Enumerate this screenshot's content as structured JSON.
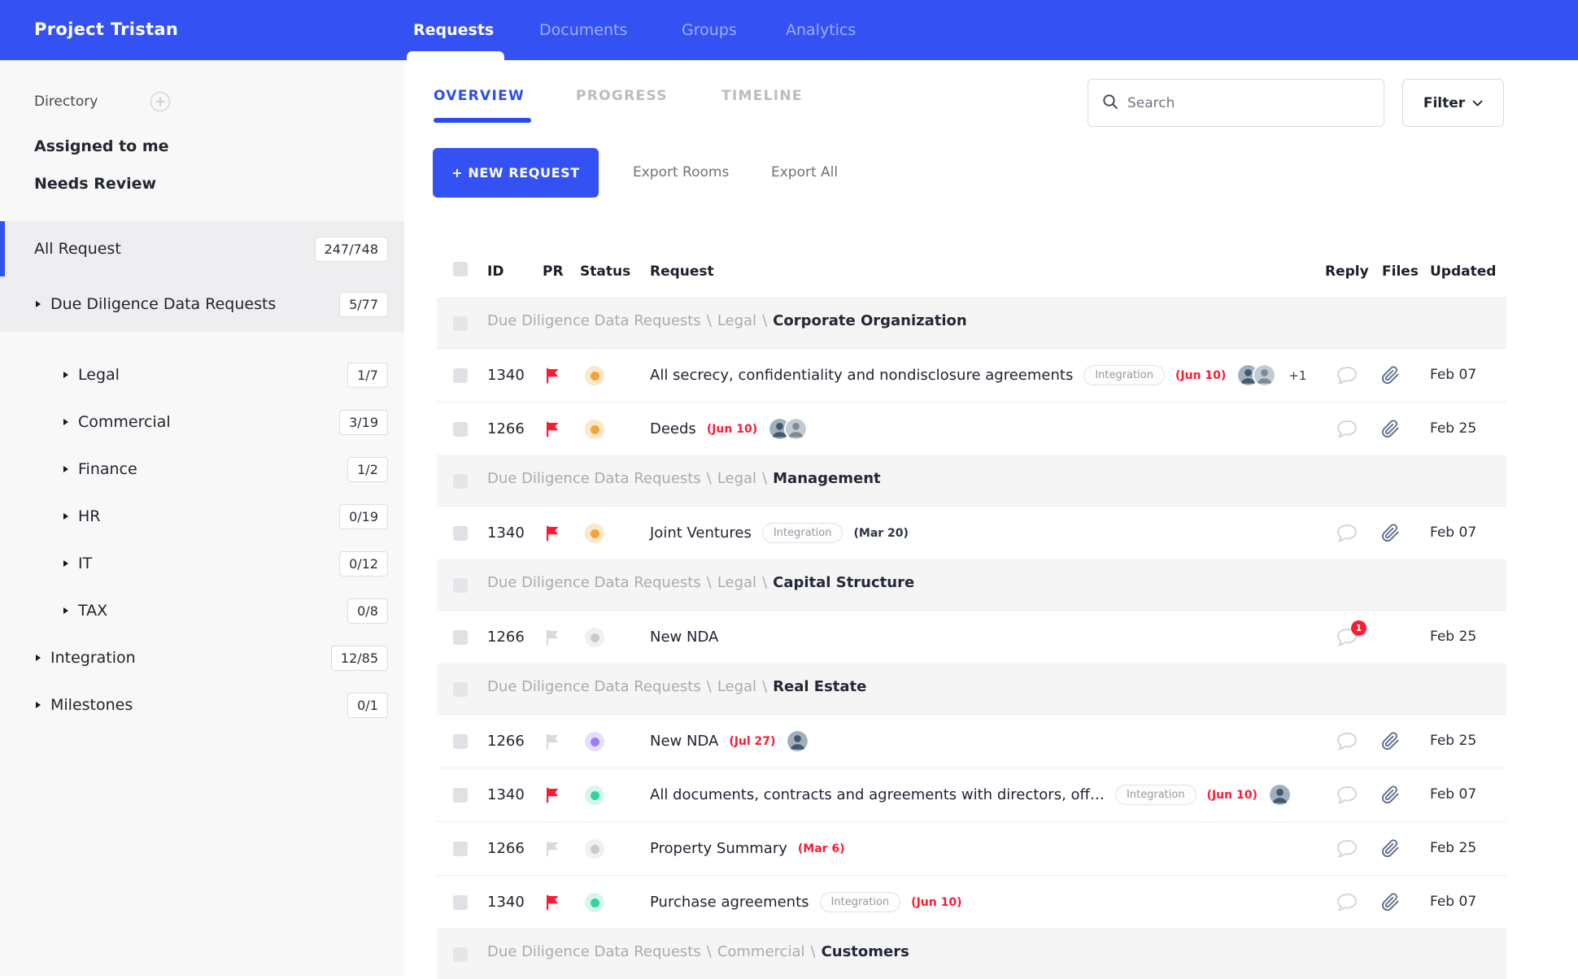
{
  "app": {
    "title": "Project Tristan"
  },
  "topnav": {
    "items": [
      {
        "label": "Requests",
        "active": true
      },
      {
        "label": "Documents",
        "active": false
      },
      {
        "label": "Groups",
        "active": false
      },
      {
        "label": "Analytics",
        "active": false
      }
    ]
  },
  "sidebar": {
    "directory_label": "Directory",
    "shortcuts": [
      "Assigned to me",
      "Needs Review"
    ],
    "tree": [
      {
        "label": "All Request",
        "count": "247/748",
        "level": 0,
        "arrow": false,
        "selected": true,
        "accent": true
      },
      {
        "label": "Due Diligence Data Requests",
        "count": "5/77",
        "level": 0,
        "arrow": true,
        "selected": true
      },
      {
        "label": "Legal",
        "count": "1/7",
        "level": 1,
        "arrow": true
      },
      {
        "label": "Commercial",
        "count": "3/19",
        "level": 1,
        "arrow": true
      },
      {
        "label": "Finance",
        "count": "1/2",
        "level": 1,
        "arrow": true
      },
      {
        "label": "HR",
        "count": "0/19",
        "level": 1,
        "arrow": true
      },
      {
        "label": "IT",
        "count": "0/12",
        "level": 1,
        "arrow": true
      },
      {
        "label": "TAX",
        "count": "0/8",
        "level": 1,
        "arrow": true
      },
      {
        "label": "Integration",
        "count": "12/85",
        "level": 0,
        "arrow": true
      },
      {
        "label": "Milestones",
        "count": "0/1",
        "level": 0,
        "arrow": true
      }
    ]
  },
  "toolbar": {
    "tabs": [
      {
        "label": "OVERVIEW",
        "active": true
      },
      {
        "label": "PROGRESS",
        "active": false
      },
      {
        "label": "TIMELINE",
        "active": false
      }
    ],
    "search_placeholder": "Search",
    "filter_label": "Filter",
    "new_request_label": "+  NEW REQUEST",
    "export_rooms_label": "Export Rooms",
    "export_all_label": "Export All"
  },
  "table": {
    "columns": {
      "id": "ID",
      "pr": "PR",
      "status": "Status",
      "request": "Request",
      "reply": "Reply",
      "files": "Files",
      "updated": "Updated"
    },
    "rows": [
      {
        "type": "group",
        "path": [
          "Due Diligence Data Requests",
          "Legal"
        ],
        "leaf": "Corporate Organization"
      },
      {
        "type": "request",
        "id": "1340",
        "flag": "red",
        "status": "orange",
        "title": "All secrecy, confidentiality and nondisclosure agreements",
        "tag": "Integration",
        "due": "(Jun 10)",
        "due_style": "red",
        "avatars": 2,
        "extra": "+1",
        "files": true,
        "updated": "Feb 07"
      },
      {
        "type": "request",
        "id": "1266",
        "flag": "red",
        "status": "orange",
        "title": "Deeds",
        "due": "(Jun 10)",
        "due_style": "red",
        "avatars": 2,
        "files": true,
        "updated": "Feb 25"
      },
      {
        "type": "group",
        "path": [
          "Due Diligence Data Requests",
          "Legal"
        ],
        "leaf": "Management"
      },
      {
        "type": "request",
        "id": "1340",
        "flag": "red",
        "status": "orange",
        "title": "Joint Ventures",
        "tag": "Integration",
        "due": "(Mar 20)",
        "due_style": "dark",
        "files": true,
        "updated": "Feb 07"
      },
      {
        "type": "group",
        "path": [
          "Due Diligence Data Requests",
          "Legal"
        ],
        "leaf": "Capital Structure"
      },
      {
        "type": "request",
        "id": "1266",
        "flag": "gray",
        "status": "gray",
        "title": "New NDA",
        "reply_badge": "1",
        "files": false,
        "updated": "Feb 25"
      },
      {
        "type": "group",
        "path": [
          "Due Diligence Data Requests",
          "Legal"
        ],
        "leaf": "Real Estate"
      },
      {
        "type": "request",
        "id": "1266",
        "flag": "gray",
        "status": "purple",
        "title": "New NDA",
        "due": "(Jul 27)",
        "due_style": "red",
        "avatars": 1,
        "files": true,
        "updated": "Feb 25"
      },
      {
        "type": "request",
        "id": "1340",
        "flag": "red",
        "status": "green",
        "title": "All documents, contracts and agreements with directors, off…",
        "tag": "Integration",
        "due": "(Jun 10)",
        "due_style": "red",
        "avatars": 1,
        "files": true,
        "updated": "Feb 07"
      },
      {
        "type": "request",
        "id": "1266",
        "flag": "gray",
        "status": "gray",
        "title": "Property Summary",
        "due": "(Mar 6)",
        "due_style": "red",
        "files": true,
        "updated": "Feb 25"
      },
      {
        "type": "request",
        "id": "1340",
        "flag": "red",
        "status": "green",
        "title": "Purchase agreements",
        "tag": "Integration",
        "due": "(Jun 10)",
        "due_style": "red",
        "files": true,
        "updated": "Feb 07"
      },
      {
        "type": "group",
        "path": [
          "Due Diligence Data Requests",
          "Commercial"
        ],
        "leaf": "Customers"
      }
    ]
  },
  "colors": {
    "accent_blue": "#3452f4",
    "tab_blue": "#2c4cf0",
    "alert_red": "#fb1b32",
    "status_orange": "#f2a33c",
    "status_orange_halo": "#fbe7c9",
    "status_green": "#2fd79b",
    "status_green_halo": "#d7f6ea",
    "status_purple": "#9d7df7",
    "status_purple_halo": "#e7defc",
    "status_gray": "#c7c9ce",
    "status_gray_halo": "#f0f0f2",
    "flag_gray": "#d8dadd",
    "paperclip": "#5d6f8e",
    "chat_outline": "#d3d6da"
  }
}
